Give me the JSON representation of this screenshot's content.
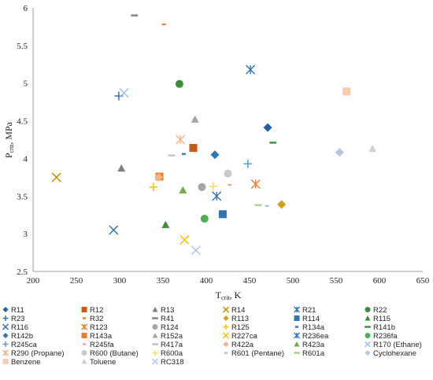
{
  "chart_data": {
    "type": "scatter",
    "title": "",
    "xlabel_main": "T",
    "xlabel_sub": "crit",
    "xlabel_unit": ", K",
    "ylabel_main": "P",
    "ylabel_sub": "crit",
    "ylabel_unit": ", MPa",
    "xlim": [
      200,
      650
    ],
    "ylim": [
      2.5,
      6
    ],
    "xticks": [
      "200",
      "250",
      "300",
      "350",
      "400",
      "450",
      "500",
      "550",
      "600",
      "650"
    ],
    "yticks": [
      "2.5",
      "3",
      "3.5",
      "4",
      "4.5",
      "5",
      "5.5",
      "6"
    ],
    "grid": false,
    "legend_position": "bottom",
    "series": [
      {
        "name": "R11",
        "x": 471,
        "y": 4.41,
        "marker": "diamond",
        "color": "#1f5fa8"
      },
      {
        "name": "R12",
        "x": 385,
        "y": 4.14,
        "marker": "square",
        "color": "#c55a11"
      },
      {
        "name": "R13",
        "x": 302,
        "y": 3.87,
        "marker": "triangle",
        "color": "#7f7f7f"
      },
      {
        "name": "R14",
        "x": 227,
        "y": 3.75,
        "marker": "x",
        "color": "#bf8f00"
      },
      {
        "name": "R21",
        "x": 451,
        "y": 5.18,
        "marker": "star",
        "color": "#2e75b6"
      },
      {
        "name": "R22",
        "x": 369,
        "y": 4.99,
        "marker": "circle",
        "color": "#3a8f3a"
      },
      {
        "name": "R23",
        "x": 299,
        "y": 4.83,
        "marker": "plus",
        "color": "#2e75b6"
      },
      {
        "name": "R32",
        "x": 351,
        "y": 5.78,
        "marker": "dash",
        "color": "#ed7d31"
      },
      {
        "name": "R41",
        "x": 317,
        "y": 5.9,
        "marker": "longdash",
        "color": "#7f7f7f"
      },
      {
        "name": "R113",
        "x": 487,
        "y": 3.39,
        "marker": "diamond",
        "color": "#d4a017"
      },
      {
        "name": "R114",
        "x": 419,
        "y": 3.26,
        "marker": "square",
        "color": "#2e75b6"
      },
      {
        "name": "R115",
        "x": 353,
        "y": 3.12,
        "marker": "triangle",
        "color": "#3a8f3a"
      },
      {
        "name": "R116",
        "x": 293,
        "y": 3.05,
        "marker": "x",
        "color": "#2e75b6"
      },
      {
        "name": "R123",
        "x": 457,
        "y": 3.66,
        "marker": "star",
        "color": "#ed7d31"
      },
      {
        "name": "R124",
        "x": 395,
        "y": 3.62,
        "marker": "circle",
        "color": "#a5a5a5"
      },
      {
        "name": "R125",
        "x": 339,
        "y": 3.62,
        "marker": "plus",
        "color": "#ffc000"
      },
      {
        "name": "R134a",
        "x": 374,
        "y": 4.06,
        "marker": "dash",
        "color": "#2e75b6"
      },
      {
        "name": "R141b",
        "x": 477,
        "y": 4.21,
        "marker": "longdash",
        "color": "#3a8f3a"
      },
      {
        "name": "R142b",
        "x": 410,
        "y": 4.05,
        "marker": "diamond",
        "color": "#2e75b6"
      },
      {
        "name": "R143a",
        "x": 346,
        "y": 3.76,
        "marker": "square",
        "color": "#ed7d31"
      },
      {
        "name": "R152a",
        "x": 387,
        "y": 4.52,
        "marker": "triangle",
        "color": "#a5a5a5"
      },
      {
        "name": "R227ca",
        "x": 375,
        "y": 2.92,
        "marker": "x",
        "color": "#ffc000"
      },
      {
        "name": "R236ea",
        "x": 412,
        "y": 3.5,
        "marker": "star",
        "color": "#2e75b6"
      },
      {
        "name": "R236fa",
        "x": 398,
        "y": 3.2,
        "marker": "circle",
        "color": "#4caf50"
      },
      {
        "name": "R245ca",
        "x": 448,
        "y": 3.93,
        "marker": "plus",
        "color": "#5b9bd5"
      },
      {
        "name": "R245fa",
        "x": 427,
        "y": 3.65,
        "marker": "dash",
        "color": "#f4a582"
      },
      {
        "name": "R417a",
        "x": 360,
        "y": 4.04,
        "marker": "longdash",
        "color": "#c0c0c0"
      },
      {
        "name": "R422a",
        "x": 345,
        "y": 3.75,
        "marker": "diamond",
        "color": "#f4b183"
      },
      {
        "name": "R423a",
        "x": 373,
        "y": 3.58,
        "marker": "triangle",
        "color": "#70ad47"
      },
      {
        "name": "R170 (Ethane)",
        "x": 305,
        "y": 4.87,
        "marker": "x",
        "color": "#9dc3e6"
      },
      {
        "name": "R290 (Propane)",
        "x": 370,
        "y": 4.25,
        "marker": "star",
        "color": "#f4b183"
      },
      {
        "name": "R600 (Butane)",
        "x": 425,
        "y": 3.8,
        "marker": "circle",
        "color": "#c9c9c9"
      },
      {
        "name": "R600a",
        "x": 408,
        "y": 3.63,
        "marker": "plus",
        "color": "#ffd966"
      },
      {
        "name": "R601 (Pentane)",
        "x": 470,
        "y": 3.37,
        "marker": "dash",
        "color": "#9dc3e6"
      },
      {
        "name": "R601a",
        "x": 460,
        "y": 3.38,
        "marker": "longdash",
        "color": "#a9d08e"
      },
      {
        "name": "Cyclohexane",
        "x": 554,
        "y": 4.08,
        "marker": "diamond",
        "color": "#b4c7e7"
      },
      {
        "name": "Benzene",
        "x": 562,
        "y": 4.89,
        "marker": "square",
        "color": "#f8cbad"
      },
      {
        "name": "Toluene",
        "x": 592,
        "y": 4.13,
        "marker": "triangle",
        "color": "#d0d0d0"
      },
      {
        "name": "RC318",
        "x": 388,
        "y": 2.78,
        "marker": "x",
        "color": "#b4c7e7"
      }
    ]
  }
}
